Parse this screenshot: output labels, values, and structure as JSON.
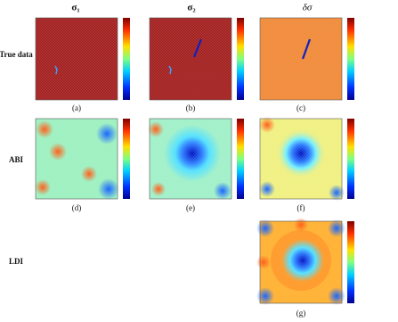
{
  "columns": [
    "σ₁",
    "σ₂",
    "δσ"
  ],
  "rows": [
    "True data",
    "ABI",
    "LDI"
  ],
  "captions": [
    "(a)",
    "(b)",
    "(c)",
    "(d)",
    "(e)",
    "(f)",
    "(g)"
  ]
}
